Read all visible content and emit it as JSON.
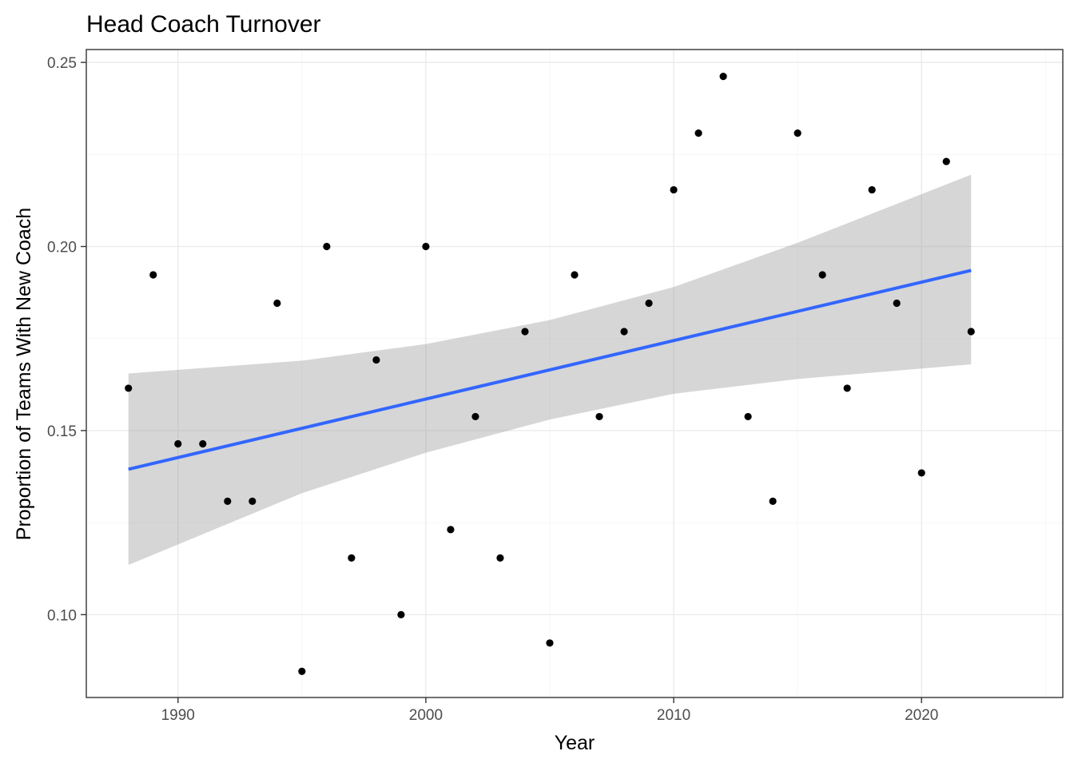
{
  "chart_data": {
    "type": "scatter",
    "title": "Head Coach Turnover",
    "xlabel": "Year",
    "ylabel": "Proportion of Teams With New Coach",
    "xlim": [
      1986.3,
      2025.7
    ],
    "ylim": [
      0.0775,
      0.2535
    ],
    "x_ticks": [
      1990,
      2000,
      2010,
      2020
    ],
    "y_ticks": [
      0.1,
      0.15,
      0.2,
      0.25
    ],
    "x_tick_labels": [
      "1990",
      "2000",
      "2010",
      "2020"
    ],
    "y_tick_labels": [
      "0.10",
      "0.15",
      "0.20",
      "0.25"
    ],
    "grid": true,
    "legend": "none",
    "points": [
      {
        "x": 1988,
        "y": 0.1615
      },
      {
        "x": 1989,
        "y": 0.1923
      },
      {
        "x": 1990,
        "y": 0.1464
      },
      {
        "x": 1991,
        "y": 0.1464
      },
      {
        "x": 1992,
        "y": 0.1308
      },
      {
        "x": 1993,
        "y": 0.1308
      },
      {
        "x": 1994,
        "y": 0.1846
      },
      {
        "x": 1995,
        "y": 0.0846
      },
      {
        "x": 1996,
        "y": 0.2
      },
      {
        "x": 1997,
        "y": 0.1154
      },
      {
        "x": 1998,
        "y": 0.1692
      },
      {
        "x": 1999,
        "y": 0.1
      },
      {
        "x": 2000,
        "y": 0.2
      },
      {
        "x": 2001,
        "y": 0.1231
      },
      {
        "x": 2002,
        "y": 0.1538
      },
      {
        "x": 2003,
        "y": 0.1154
      },
      {
        "x": 2004,
        "y": 0.1769
      },
      {
        "x": 2005,
        "y": 0.0923
      },
      {
        "x": 2006,
        "y": 0.1923
      },
      {
        "x": 2007,
        "y": 0.1538
      },
      {
        "x": 2008,
        "y": 0.1769
      },
      {
        "x": 2009,
        "y": 0.1846
      },
      {
        "x": 2010,
        "y": 0.2154
      },
      {
        "x": 2011,
        "y": 0.2308
      },
      {
        "x": 2012,
        "y": 0.2462
      },
      {
        "x": 2013,
        "y": 0.1538
      },
      {
        "x": 2014,
        "y": 0.1308
      },
      {
        "x": 2015,
        "y": 0.2308
      },
      {
        "x": 2016,
        "y": 0.1923
      },
      {
        "x": 2017,
        "y": 0.1615
      },
      {
        "x": 2018,
        "y": 0.2154
      },
      {
        "x": 2019,
        "y": 0.1846
      },
      {
        "x": 2020,
        "y": 0.1385
      },
      {
        "x": 2021,
        "y": 0.2231
      },
      {
        "x": 2022,
        "y": 0.1769
      }
    ],
    "trend_line": {
      "method": "linear",
      "color": "#3366ff",
      "x": [
        1988,
        2022
      ],
      "y": [
        0.1395,
        0.1935
      ]
    },
    "confidence_band": {
      "color": "#999999",
      "x": [
        1988,
        1995,
        2000,
        2005,
        2010,
        2015,
        2022
      ],
      "lower": [
        0.1135,
        0.133,
        0.144,
        0.153,
        0.16,
        0.164,
        0.168
      ],
      "upper": [
        0.1655,
        0.169,
        0.1735,
        0.18,
        0.189,
        0.201,
        0.2195
      ]
    },
    "point_color": "#000000"
  }
}
